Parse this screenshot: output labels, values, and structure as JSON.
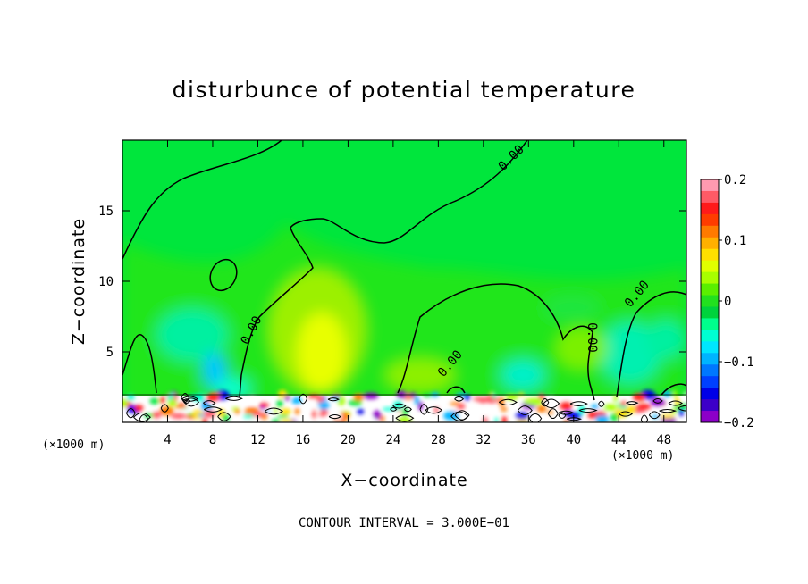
{
  "chart_data": {
    "type": "heatmap",
    "title": "disturbunce of potential temperature",
    "xlabel": "X−coordinate",
    "ylabel": "Z−coordinate",
    "x_unit_label": "(×1000 m)",
    "footer": "CONTOUR INTERVAL = 3.000E−01",
    "xlim": [
      0,
      50
    ],
    "ylim": [
      0,
      20
    ],
    "x_ticks": [
      4,
      8,
      12,
      16,
      20,
      24,
      28,
      32,
      36,
      40,
      44,
      48
    ],
    "y_ticks": [
      5,
      10,
      15
    ],
    "contour_labels": [
      "0.00",
      "0.00",
      "0.00",
      "0.00",
      "0.00",
      "0.00"
    ],
    "colorbar": {
      "range": [
        -0.2,
        0.2
      ],
      "ticks": [
        "0.2",
        "0.1",
        "0",
        "−0.1",
        "−0.2"
      ],
      "colors_top_to_bottom": [
        "#ff9ab0",
        "#ff5a66",
        "#ff1a1a",
        "#ff3c00",
        "#ff7a00",
        "#ffb000",
        "#ffe000",
        "#e0ff00",
        "#a8ff00",
        "#5aef00",
        "#22e01e",
        "#00d23c",
        "#00ff8c",
        "#00ffd2",
        "#00e6ff",
        "#00b4ff",
        "#0078ff",
        "#0040ff",
        "#0000e6",
        "#3c00c8",
        "#8c00c8"
      ]
    },
    "background_value_color": "#00e63c"
  }
}
